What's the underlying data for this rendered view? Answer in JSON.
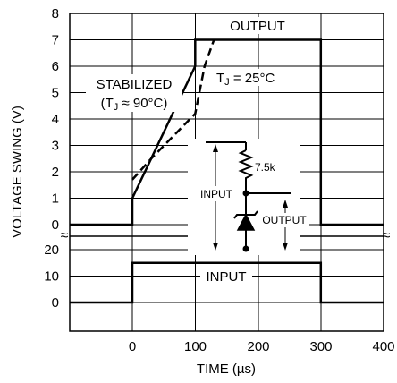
{
  "chart_data": {
    "type": "line",
    "xlabel": "TIME (µs)",
    "ylabel": "VOLTAGE SWING (V)",
    "x_ticks": [
      "0",
      "100",
      "200",
      "300",
      "400"
    ],
    "upper_panel": {
      "y_ticks": [
        "0",
        "1",
        "2",
        "3",
        "4",
        "5",
        "6",
        "7",
        "8"
      ],
      "ylim": [
        0,
        8
      ],
      "xlim": [
        -100,
        400
      ],
      "series": [
        {
          "name": "STABILIZED (TJ ≈ 90°C)",
          "style": "solid",
          "x": [
            -100,
            0,
            0,
            100,
            100,
            300,
            300,
            400
          ],
          "y": [
            0,
            0,
            1.0,
            6.0,
            7.0,
            7.0,
            0,
            0
          ]
        },
        {
          "name": "TJ = 25°C",
          "style": "dashed",
          "x": [
            0,
            30,
            100,
            115,
            130
          ],
          "y": [
            1.7,
            2.5,
            4.2,
            6.0,
            7.0
          ]
        }
      ]
    },
    "lower_panel": {
      "y_ticks": [
        "0",
        "10",
        "20"
      ],
      "ylim": [
        -10,
        20
      ],
      "xlim": [
        -100,
        400
      ],
      "series": [
        {
          "name": "INPUT",
          "style": "solid",
          "x": [
            -100,
            0,
            0,
            300,
            300,
            400
          ],
          "y": [
            0,
            0,
            15,
            15,
            0,
            0
          ]
        }
      ]
    }
  },
  "annotations": {
    "output": "OUTPUT",
    "stabilized_line1": "STABILIZED",
    "stabilized_line2_pre": "(T",
    "stabilized_sub": "J",
    "stabilized_line2_post": " ≈ 90°C)",
    "tj25_pre": "T",
    "tj25_sub": "J",
    "tj25_post": " = 25°C",
    "input_lower": "INPUT",
    "schematic_resistor": "7.5k",
    "schematic_input": "INPUT",
    "schematic_output": "OUTPUT",
    "break_mark": "≈"
  }
}
